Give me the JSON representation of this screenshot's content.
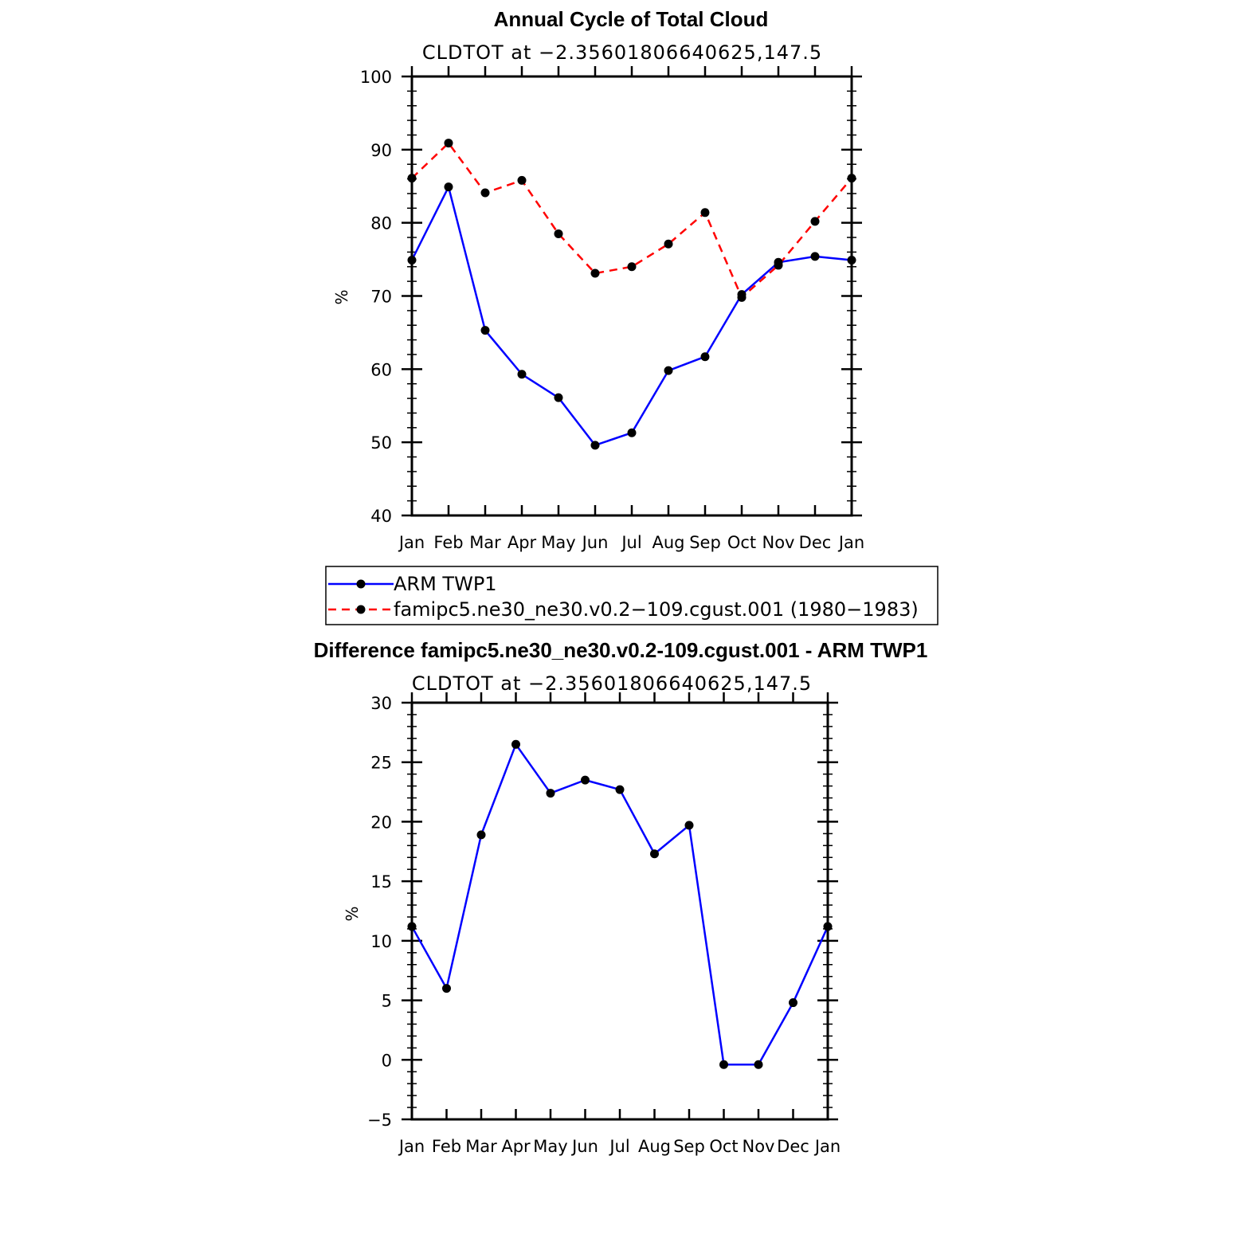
{
  "chart_data": [
    {
      "type": "line",
      "title": "Annual Cycle of Total Cloud",
      "subtitle": "CLDTOT at −2.35601806640625,147.5",
      "xlabel": "",
      "ylabel": "%",
      "categories": [
        "Jan",
        "Feb",
        "Mar",
        "Apr",
        "May",
        "Jun",
        "Jul",
        "Aug",
        "Sep",
        "Oct",
        "Nov",
        "Dec",
        "Jan"
      ],
      "ylim": [
        40,
        100
      ],
      "yticks": [
        40,
        50,
        60,
        70,
        80,
        90,
        100
      ],
      "series": [
        {
          "name": "ARM TWP1",
          "color": "#0000ff",
          "dash": "solid",
          "values": [
            74.9,
            84.9,
            65.3,
            59.3,
            56.1,
            49.6,
            51.3,
            59.8,
            61.7,
            70.2,
            74.6,
            75.4,
            74.9
          ]
        },
        {
          "name": "famipc5.ne30_ne30.v0.2−109.cgust.001 (1980−1983)",
          "color": "#ff0000",
          "dash": "dashed",
          "values": [
            86.1,
            90.9,
            84.1,
            85.8,
            78.5,
            73.1,
            74.0,
            77.1,
            81.4,
            69.8,
            74.2,
            80.2,
            86.1
          ]
        }
      ],
      "legend": {
        "entries": [
          "ARM TWP1",
          "famipc5.ne30_ne30.v0.2−109.cgust.001 (1980−1983)"
        ]
      }
    },
    {
      "type": "line",
      "title": "Difference famipc5.ne30_ne30.v0.2-109.cgust.001 - ARM TWP1",
      "subtitle": "CLDTOT at −2.35601806640625,147.5",
      "xlabel": "",
      "ylabel": "%",
      "categories": [
        "Jan",
        "Feb",
        "Mar",
        "Apr",
        "May",
        "Jun",
        "Jul",
        "Aug",
        "Sep",
        "Oct",
        "Nov",
        "Dec",
        "Jan"
      ],
      "ylim": [
        -5,
        30
      ],
      "yticks": [
        -5,
        0,
        5,
        10,
        15,
        20,
        25,
        30
      ],
      "ytick_labels": [
        "−5",
        "0",
        "5",
        "10",
        "15",
        "20",
        "25",
        "30"
      ],
      "series": [
        {
          "name": "Difference",
          "color": "#0000ff",
          "dash": "solid",
          "values": [
            11.2,
            6.0,
            18.9,
            26.5,
            22.4,
            23.5,
            22.7,
            17.3,
            19.7,
            -0.4,
            -0.4,
            4.8,
            11.2
          ]
        }
      ]
    }
  ]
}
